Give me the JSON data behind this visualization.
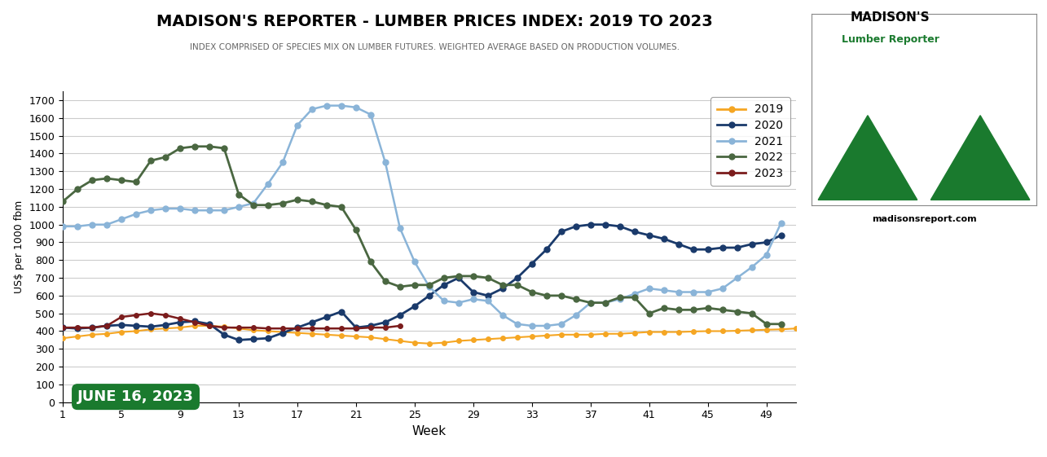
{
  "title": "MADISON'S REPORTER - LUMBER PRICES INDEX: 2019 TO 2023",
  "subtitle": "INDEX COMPRISED OF SPECIES MIX ON LUMBER FUTURES. WEIGHTED AVERAGE BASED ON PRODUCTION VOLUMES.",
  "xlabel": "Week",
  "ylabel": "US$ per 1000 fbm",
  "date_label": "JUNE 16, 2023",
  "background_color": "#ffffff",
  "plot_bg_color": "#ffffff",
  "grid_color": "#cccccc",
  "years": [
    "2019",
    "2020",
    "2021",
    "2022",
    "2023"
  ],
  "colors": {
    "2019": "#f5a623",
    "2020": "#1a3a6b",
    "2021": "#8ab4d8",
    "2022": "#4a6741",
    "2023": "#7b1c1c"
  },
  "weeks": [
    1,
    2,
    3,
    4,
    5,
    6,
    7,
    8,
    9,
    10,
    11,
    12,
    13,
    14,
    15,
    16,
    17,
    18,
    19,
    20,
    21,
    22,
    23,
    24,
    25,
    26,
    27,
    28,
    29,
    30,
    31,
    32,
    33,
    34,
    35,
    36,
    37,
    38,
    39,
    40,
    41,
    42,
    43,
    44,
    45,
    46,
    47,
    48,
    49,
    50,
    51
  ],
  "data_2019": [
    360,
    370,
    380,
    385,
    395,
    400,
    410,
    415,
    420,
    430,
    430,
    425,
    415,
    405,
    400,
    395,
    390,
    385,
    380,
    375,
    370,
    365,
    355,
    345,
    335,
    330,
    335,
    345,
    350,
    355,
    360,
    365,
    370,
    375,
    380,
    380,
    380,
    385,
    385,
    390,
    395,
    395,
    395,
    398,
    400,
    400,
    402,
    405,
    408,
    410,
    415
  ],
  "data_2020": [
    420,
    415,
    420,
    430,
    435,
    430,
    425,
    435,
    450,
    455,
    440,
    380,
    350,
    355,
    360,
    390,
    420,
    450,
    480,
    510,
    420,
    430,
    450,
    490,
    540,
    600,
    660,
    700,
    620,
    600,
    640,
    700,
    780,
    860,
    960,
    990,
    1000,
    1000,
    990,
    960,
    940,
    920,
    890,
    860,
    860,
    870,
    870,
    890,
    900,
    940,
    null
  ],
  "data_2021": [
    990,
    990,
    1000,
    1000,
    1030,
    1060,
    1080,
    1090,
    1090,
    1080,
    1080,
    1080,
    1100,
    1120,
    1230,
    1350,
    1560,
    1650,
    1670,
    1670,
    1660,
    1620,
    1350,
    980,
    790,
    650,
    570,
    560,
    580,
    570,
    490,
    440,
    430,
    430,
    440,
    490,
    560,
    560,
    580,
    610,
    640,
    630,
    620,
    620,
    620,
    640,
    700,
    760,
    830,
    1010,
    null
  ],
  "data_2022": [
    1130,
    1200,
    1250,
    1260,
    1250,
    1240,
    1360,
    1380,
    1430,
    1440,
    1440,
    1430,
    1170,
    1110,
    1110,
    1120,
    1140,
    1130,
    1110,
    1100,
    970,
    790,
    680,
    650,
    660,
    660,
    700,
    710,
    710,
    700,
    660,
    660,
    620,
    600,
    600,
    580,
    560,
    560,
    590,
    590,
    500,
    530,
    520,
    520,
    530,
    520,
    510,
    500,
    440,
    440,
    null
  ],
  "data_2023": [
    420,
    420,
    420,
    430,
    480,
    490,
    500,
    490,
    470,
    450,
    430,
    420,
    420,
    420,
    415,
    415,
    415,
    415,
    415,
    415,
    415,
    420,
    420,
    430,
    null,
    null,
    null,
    null,
    null,
    null,
    null,
    null,
    null,
    null,
    null,
    null,
    null,
    null,
    null,
    null,
    null,
    null,
    null,
    null,
    null,
    null,
    null,
    null,
    null,
    null,
    null
  ],
  "yticks": [
    0,
    100,
    200,
    300,
    400,
    500,
    600,
    700,
    800,
    900,
    1000,
    1100,
    1200,
    1300,
    1400,
    1500,
    1600,
    1700
  ],
  "xticks": [
    1,
    5,
    9,
    13,
    17,
    21,
    25,
    29,
    33,
    37,
    41,
    45,
    49
  ],
  "ylim": [
    0,
    1750
  ],
  "xlim": [
    1,
    51
  ],
  "marker_sizes": {
    "2019": 4,
    "2020": 5,
    "2021": 5,
    "2022": 5,
    "2023": 4
  },
  "linewidths": {
    "2019": 1.5,
    "2020": 2.0,
    "2021": 1.8,
    "2022": 2.0,
    "2023": 1.8
  },
  "logo_green": "#1a7a2e",
  "logo_text_green": "#1a7a2e"
}
